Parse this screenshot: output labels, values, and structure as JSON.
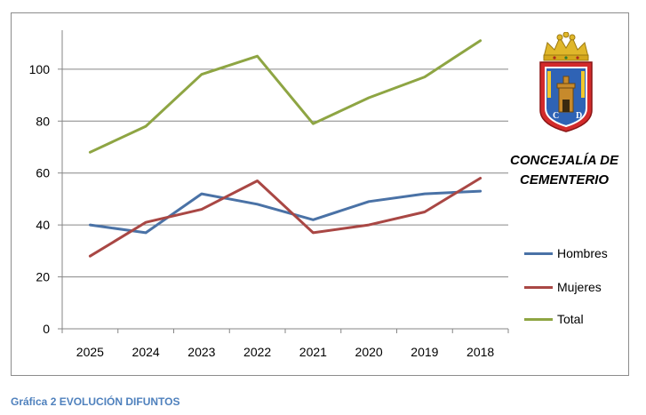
{
  "chart_data": {
    "type": "line",
    "categories": [
      "2025",
      "2024",
      "2023",
      "2022",
      "2021",
      "2020",
      "2019",
      "2018"
    ],
    "series": [
      {
        "name": "Hombres",
        "color": "#4a72a6",
        "values": [
          40,
          37,
          52,
          48,
          42,
          49,
          52,
          53
        ]
      },
      {
        "name": "Mujeres",
        "color": "#a94744",
        "values": [
          28,
          41,
          46,
          57,
          37,
          40,
          45,
          58
        ]
      },
      {
        "name": "Total",
        "color": "#8ea543",
        "values": [
          68,
          78,
          98,
          105,
          79,
          89,
          97,
          111
        ]
      }
    ],
    "ylim": [
      0,
      115
    ],
    "yticks": [
      0,
      20,
      40,
      60,
      80,
      100
    ],
    "grid": true,
    "legend": "right"
  },
  "branding": {
    "title_line1": "CONCEJALÍA DE",
    "title_line2": "CEMENTERIO",
    "crest_letters": [
      "C",
      "D"
    ]
  },
  "caption": "Gráfica 2 EVOLUCIÓN DIFUNTOS"
}
